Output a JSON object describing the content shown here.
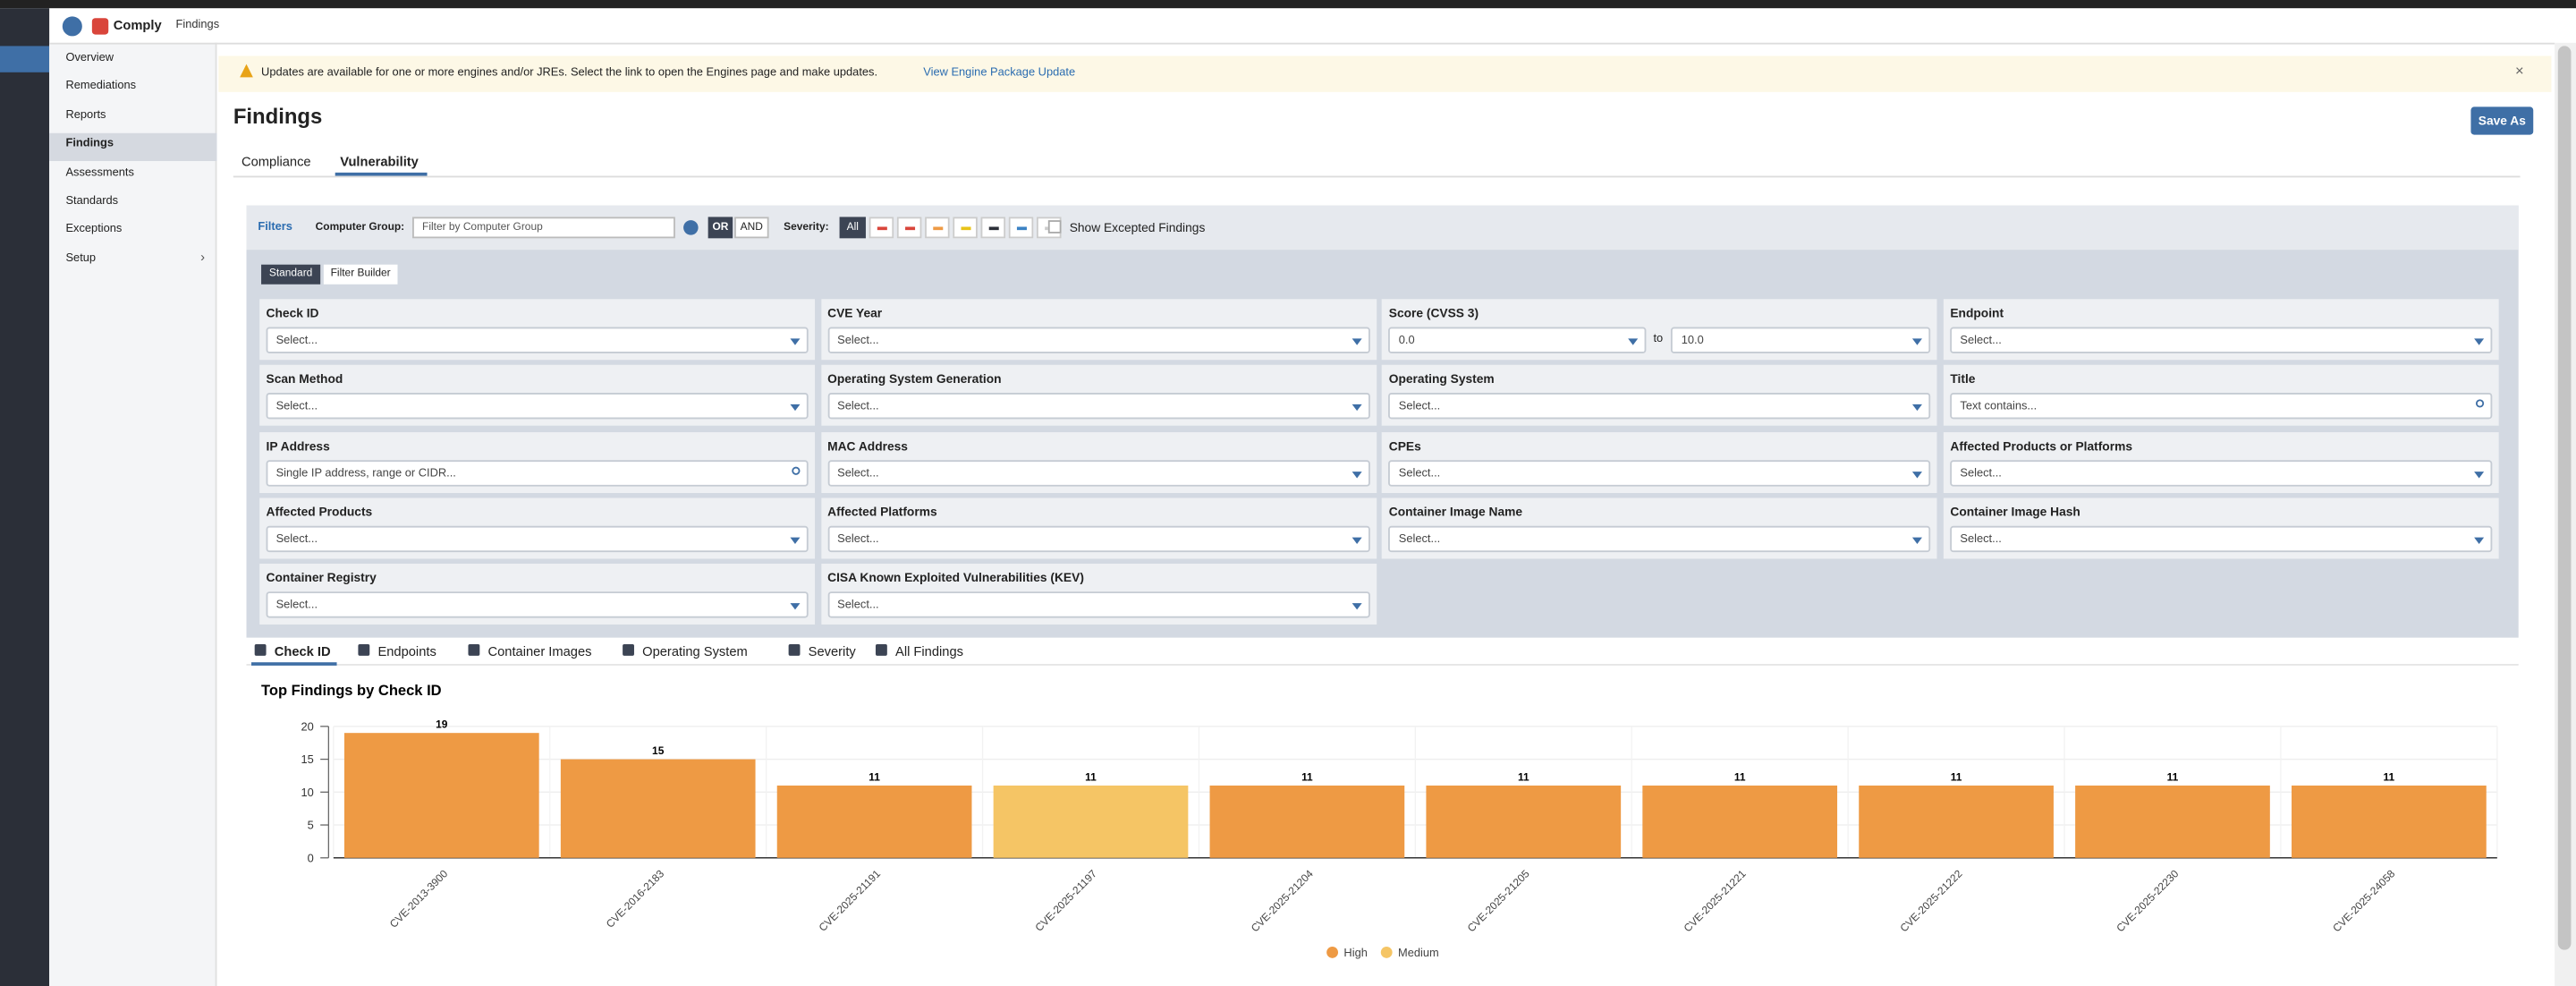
{
  "app": {
    "name": "Comply",
    "breadcrumb": "Findings"
  },
  "nav": [
    "Overview",
    "Remediations",
    "Reports",
    "Findings",
    "Assessments",
    "Standards",
    "Exceptions",
    "Setup"
  ],
  "nav_active": 3,
  "banner": {
    "text": "Updates are available for one or more engines and/or JREs. Select the link to open the Engines page and make updates.",
    "link": "View Engine Package Update"
  },
  "page": {
    "title": "Findings",
    "save": "Save As",
    "tabs": [
      "Compliance",
      "Vulnerability"
    ],
    "active_tab": 1
  },
  "filters": {
    "toggle": "Filters",
    "group_label": "Computer Group:",
    "group_placeholder": "Filter by Computer Group",
    "or": "OR",
    "and": "AND",
    "severity_label": "Severity:",
    "severity_all": "All",
    "excepted": "Show Excepted Findings",
    "modes": [
      "Standard",
      "Filter Builder"
    ],
    "fields": [
      {
        "label": "Check ID",
        "placeholder": "Select..."
      },
      {
        "label": "CVE Year",
        "placeholder": "Select..."
      },
      {
        "label": "Score (CVSS 3)",
        "from": "0.0",
        "to_word": "to",
        "to": "10.0"
      },
      {
        "label": "Endpoint",
        "placeholder": "Select..."
      },
      {
        "label": "Scan Method",
        "placeholder": "Select..."
      },
      {
        "label": "Operating System Generation",
        "placeholder": "Select..."
      },
      {
        "label": "Operating System",
        "placeholder": "Select..."
      },
      {
        "label": "Title",
        "placeholder": "Text contains...",
        "search": true
      },
      {
        "label": "IP Address",
        "placeholder": "Single IP address, range or CIDR...",
        "search": true
      },
      {
        "label": "MAC Address",
        "placeholder": "Select..."
      },
      {
        "label": "CPEs",
        "placeholder": "Select..."
      },
      {
        "label": "Affected Products or Platforms",
        "placeholder": "Select..."
      },
      {
        "label": "Affected Products",
        "placeholder": "Select..."
      },
      {
        "label": "Affected Platforms",
        "placeholder": "Select..."
      },
      {
        "label": "Container Image Name",
        "placeholder": "Select..."
      },
      {
        "label": "Container Image Hash",
        "placeholder": "Select..."
      },
      {
        "label": "Container Registry",
        "placeholder": "Select..."
      },
      {
        "label": "CISA Known Exploited Vulnerabilities (KEV)",
        "placeholder": "Select..."
      }
    ]
  },
  "view_tabs": [
    "Check ID",
    "Endpoints",
    "Container Images",
    "Operating System",
    "Severity",
    "All Findings"
  ],
  "chart_data": {
    "type": "bar",
    "title": "Top Findings by Check ID",
    "categories": [
      "CVE-2013-3900",
      "CVE-2016-2183",
      "CVE-2025-21191",
      "CVE-2025-21197",
      "CVE-2025-21204",
      "CVE-2025-21205",
      "CVE-2025-21221",
      "CVE-2025-21222",
      "CVE-2025-22230",
      "CVE-2025-24058"
    ],
    "series": [
      {
        "name": "High",
        "color": "#ee9a44",
        "values": [
          19,
          15,
          11,
          null,
          11,
          11,
          11,
          11,
          11,
          11
        ]
      },
      {
        "name": "Medium",
        "color": "#f5c565",
        "values": [
          null,
          null,
          null,
          11,
          null,
          null,
          null,
          null,
          null,
          null
        ]
      }
    ],
    "ylim": [
      0,
      20
    ],
    "yticks": [
      0,
      5,
      10,
      15,
      20
    ],
    "grid": true
  }
}
